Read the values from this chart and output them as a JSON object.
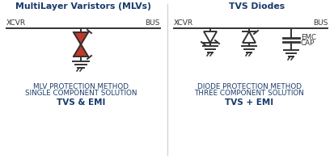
{
  "bg_color": "#ffffff",
  "title_color": "#1a3a6b",
  "text_color": "#1a3a6b",
  "red_color": "#c0392b",
  "line_color": "#333333",
  "left_title": "MultiLayer Varistors (MLVs)",
  "right_title": "TVS Diodes",
  "left_xcvr": "XCVR",
  "left_bus": "BUS",
  "right_xcvr": "XCVR",
  "right_bus": "BUS",
  "left_label1": "MLV PROTECTION METHOD",
  "left_label2": "SINGLE COMPONENT SOLUTION",
  "left_label3": "TVS & EMI",
  "right_label1": "DIODE PROTECTION METHOD",
  "right_label2": "THREE COMPONENT SOLUTION",
  "right_label3": "TVS + EMI",
  "emc_label": "EMC",
  "cap_label": "CAP",
  "divider_color": "#cccccc"
}
